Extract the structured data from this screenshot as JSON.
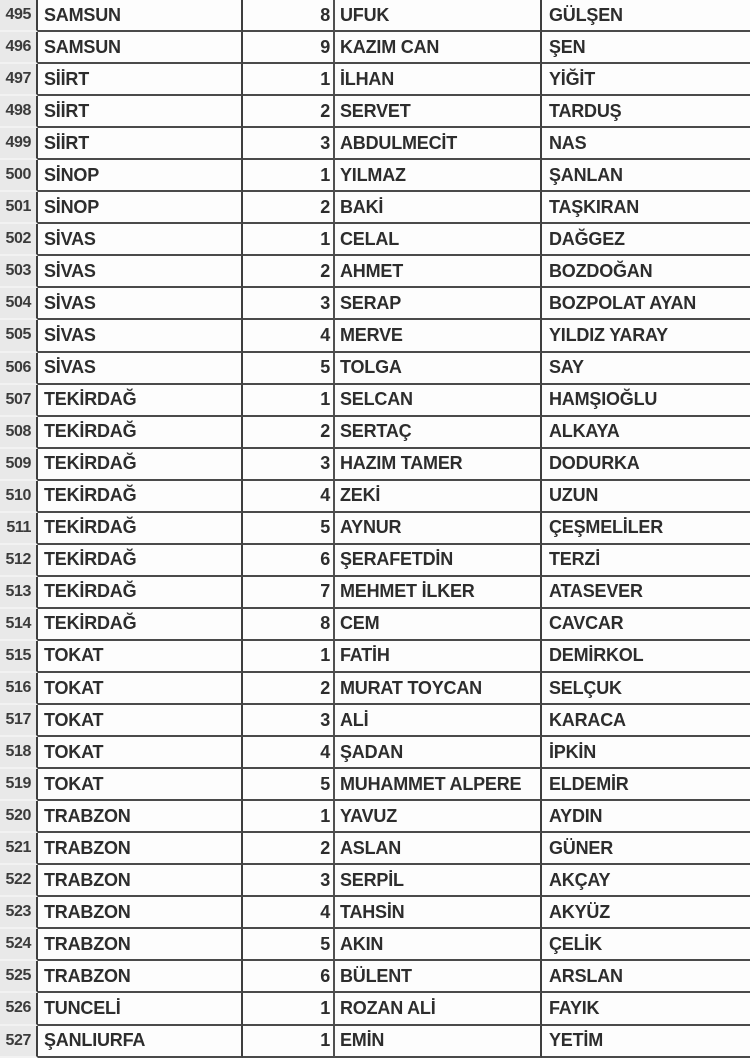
{
  "colors": {
    "grid_line": "#4a4a4a",
    "row_header_divider": "#3e3e3e",
    "row_header_bg": "#e9e9e9",
    "cell_bg": "#fdfdfd",
    "text": "#2d2d2d",
    "row_header_text": "#3b3b3b"
  },
  "table": {
    "rows": [
      {
        "row_number": "495",
        "province": "SAMSUN",
        "list_order": "8",
        "first_name": "UFUK",
        "last_name": "GÜLŞEN"
      },
      {
        "row_number": "496",
        "province": "SAMSUN",
        "list_order": "9",
        "first_name": "KAZIM CAN",
        "last_name": "ŞEN"
      },
      {
        "row_number": "497",
        "province": "SİİRT",
        "list_order": "1",
        "first_name": "İLHAN",
        "last_name": "YİĞİT"
      },
      {
        "row_number": "498",
        "province": "SİİRT",
        "list_order": "2",
        "first_name": "SERVET",
        "last_name": "TARDUŞ"
      },
      {
        "row_number": "499",
        "province": "SİİRT",
        "list_order": "3",
        "first_name": "ABDULMECİT",
        "last_name": "NAS"
      },
      {
        "row_number": "500",
        "province": "SİNOP",
        "list_order": "1",
        "first_name": "YILMAZ",
        "last_name": "ŞANLAN"
      },
      {
        "row_number": "501",
        "province": "SİNOP",
        "list_order": "2",
        "first_name": "BAKİ",
        "last_name": "TAŞKIRAN"
      },
      {
        "row_number": "502",
        "province": "SİVAS",
        "list_order": "1",
        "first_name": "CELAL",
        "last_name": "DAĞGEZ"
      },
      {
        "row_number": "503",
        "province": "SİVAS",
        "list_order": "2",
        "first_name": "AHMET",
        "last_name": "BOZDOĞAN"
      },
      {
        "row_number": "504",
        "province": "SİVAS",
        "list_order": "3",
        "first_name": "SERAP",
        "last_name": "BOZPOLAT AYAN"
      },
      {
        "row_number": "505",
        "province": "SİVAS",
        "list_order": "4",
        "first_name": "MERVE",
        "last_name": "YILDIZ YARAY"
      },
      {
        "row_number": "506",
        "province": "SİVAS",
        "list_order": "5",
        "first_name": "TOLGA",
        "last_name": "SAY"
      },
      {
        "row_number": "507",
        "province": "TEKİRDAĞ",
        "list_order": "1",
        "first_name": "SELCAN",
        "last_name": "HAMŞIOĞLU"
      },
      {
        "row_number": "508",
        "province": "TEKİRDAĞ",
        "list_order": "2",
        "first_name": "SERTAÇ",
        "last_name": "ALKAYA"
      },
      {
        "row_number": "509",
        "province": "TEKİRDAĞ",
        "list_order": "3",
        "first_name": "HAZIM TAMER",
        "last_name": "DODURKA"
      },
      {
        "row_number": "510",
        "province": "TEKİRDAĞ",
        "list_order": "4",
        "first_name": "ZEKİ",
        "last_name": "UZUN"
      },
      {
        "row_number": "511",
        "province": "TEKİRDAĞ",
        "list_order": "5",
        "first_name": "AYNUR",
        "last_name": "ÇEŞMELİLER"
      },
      {
        "row_number": "512",
        "province": "TEKİRDAĞ",
        "list_order": "6",
        "first_name": "ŞERAFETDİN",
        "last_name": "TERZİ"
      },
      {
        "row_number": "513",
        "province": "TEKİRDAĞ",
        "list_order": "7",
        "first_name": "MEHMET İLKER",
        "last_name": "ATASEVER"
      },
      {
        "row_number": "514",
        "province": "TEKİRDAĞ",
        "list_order": "8",
        "first_name": "CEM",
        "last_name": "CAVCAR"
      },
      {
        "row_number": "515",
        "province": "TOKAT",
        "list_order": "1",
        "first_name": "FATİH",
        "last_name": "DEMİRKOL"
      },
      {
        "row_number": "516",
        "province": "TOKAT",
        "list_order": "2",
        "first_name": "MURAT TOYCAN",
        "last_name": "SELÇUK"
      },
      {
        "row_number": "517",
        "province": "TOKAT",
        "list_order": "3",
        "first_name": "ALİ",
        "last_name": "KARACA"
      },
      {
        "row_number": "518",
        "province": "TOKAT",
        "list_order": "4",
        "first_name": "ŞADAN",
        "last_name": "İPKİN"
      },
      {
        "row_number": "519",
        "province": "TOKAT",
        "list_order": "5",
        "first_name": "MUHAMMET ALPERE",
        "last_name": "ELDEMİR"
      },
      {
        "row_number": "520",
        "province": "TRABZON",
        "list_order": "1",
        "first_name": "YAVUZ",
        "last_name": "AYDIN"
      },
      {
        "row_number": "521",
        "province": "TRABZON",
        "list_order": "2",
        "first_name": "ASLAN",
        "last_name": "GÜNER"
      },
      {
        "row_number": "522",
        "province": "TRABZON",
        "list_order": "3",
        "first_name": "SERPİL",
        "last_name": "AKÇAY"
      },
      {
        "row_number": "523",
        "province": "TRABZON",
        "list_order": "4",
        "first_name": "TAHSİN",
        "last_name": "AKYÜZ"
      },
      {
        "row_number": "524",
        "province": "TRABZON",
        "list_order": "5",
        "first_name": "AKIN",
        "last_name": "ÇELİK"
      },
      {
        "row_number": "525",
        "province": "TRABZON",
        "list_order": "6",
        "first_name": "BÜLENT",
        "last_name": "ARSLAN"
      },
      {
        "row_number": "526",
        "province": "TUNCELİ",
        "list_order": "1",
        "first_name": "ROZAN ALİ",
        "last_name": "FAYIK"
      },
      {
        "row_number": "527",
        "province": "ŞANLIURFA",
        "list_order": "1",
        "first_name": "EMİN",
        "last_name": "YETİM"
      }
    ]
  }
}
